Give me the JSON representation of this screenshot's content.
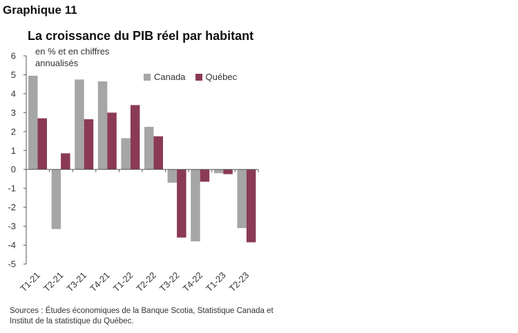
{
  "figure_label": "Graphique 11",
  "chart_data": {
    "type": "bar",
    "title": "La croissance du PIB réel par habitant",
    "unit_label": "en % et en chiffres annualisés",
    "categories": [
      "T1-21",
      "T2-21",
      "T3-21",
      "T4-21",
      "T1-22",
      "T2-22",
      "T3-22",
      "T4-22",
      "T1-23",
      "T2-23"
    ],
    "series": [
      {
        "name": "Canada",
        "color": "#a6a6a6",
        "values": [
          4.95,
          -3.15,
          4.75,
          4.65,
          1.65,
          2.25,
          -0.7,
          -3.8,
          -0.2,
          -3.1
        ]
      },
      {
        "name": "Québec",
        "color": "#8b3a55",
        "values": [
          2.7,
          0.85,
          2.65,
          3.0,
          3.4,
          1.75,
          -3.6,
          -0.65,
          -0.25,
          -3.85
        ]
      }
    ],
    "ylim": [
      -5,
      6
    ],
    "yticks": [
      "6",
      "5",
      "4",
      "3",
      "2",
      "1",
      "0",
      "-1",
      "-2",
      "-3",
      "-4",
      "-5"
    ],
    "xlabel": "",
    "ylabel": ""
  },
  "source_text": "Sources : Études économiques de la Banque Scotia, Statistique Canada et Institut de la statistique du Québec."
}
